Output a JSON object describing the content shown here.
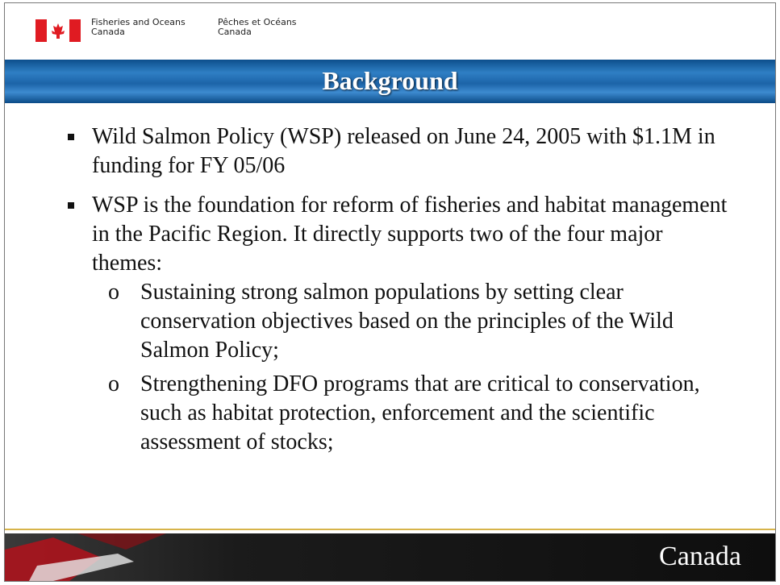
{
  "header": {
    "department_en": [
      "Fisheries and Oceans",
      "Canada"
    ],
    "department_fr": [
      "Pêches et Océans",
      "Canada"
    ]
  },
  "title": "Background",
  "bullets": [
    {
      "text": "Wild Salmon Policy (WSP) released on June 24, 2005 with $1.1M in funding for FY 05/06"
    },
    {
      "text": "WSP is the foundation for reform of fisheries and habitat management in the Pacific Region.  It directly supports two of the four major themes:",
      "sub_bullets": [
        {
          "marker": "o",
          "text": "Sustaining strong salmon populations by setting clear conservation objectives based on the principles of the Wild Salmon Policy;"
        },
        {
          "marker": "o",
          "text": "Strengthening DFO programs that are critical to conservation, such as habitat protection, enforcement and the scientific assessment of stocks;"
        }
      ]
    }
  ],
  "footer": {
    "wordmark": "Canada"
  }
}
